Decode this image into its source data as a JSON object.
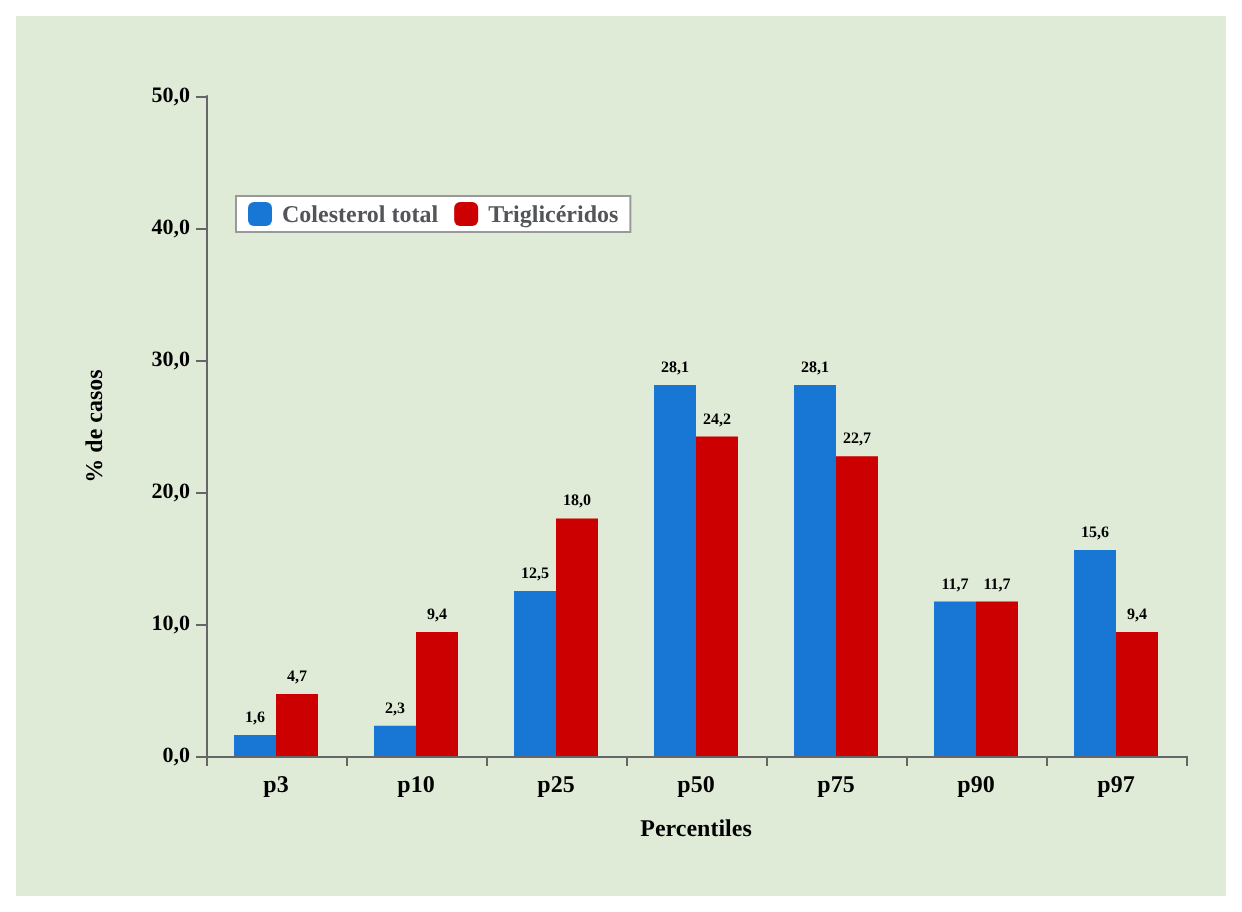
{
  "chart_data": {
    "type": "bar",
    "xlabel": "Percentiles",
    "ylabel": "% de casos",
    "categories": [
      "p3",
      "p10",
      "p25",
      "p50",
      "p75",
      "p90",
      "p97"
    ],
    "series": [
      {
        "name": "Colesterol total",
        "color": "#1877d4",
        "values": [
          1.6,
          2.3,
          12.5,
          28.1,
          28.1,
          11.7,
          15.6
        ],
        "value_labels": [
          "1,6",
          "2,3",
          "12,5",
          "28,1",
          "28,1",
          "11,7",
          "15,6"
        ]
      },
      {
        "name": "Triglicéridos",
        "color": "#cc0000",
        "values": [
          4.7,
          9.4,
          18.0,
          24.2,
          22.7,
          11.7,
          9.4
        ],
        "value_labels": [
          "4,7",
          "9,4",
          "18,0",
          "24,2",
          "22,7",
          "11,7",
          "9,4"
        ]
      }
    ],
    "ylim": [
      0,
      50
    ],
    "yticks": [
      {
        "value": 0,
        "label": "0,0"
      },
      {
        "value": 10,
        "label": "10,0"
      },
      {
        "value": 20,
        "label": "20,0"
      },
      {
        "value": 30,
        "label": "30,0"
      },
      {
        "value": 40,
        "label": "40,0"
      },
      {
        "value": 50,
        "label": "50,0"
      }
    ],
    "grid": false,
    "legend": "top left"
  }
}
